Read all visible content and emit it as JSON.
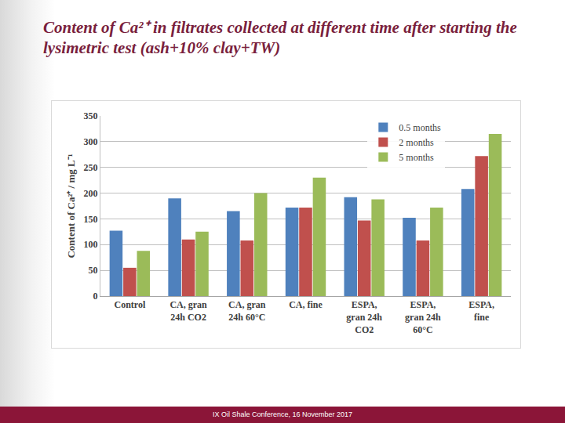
{
  "chart_data": {
    "type": "bar",
    "title": "Content of Ca²⁺ in filtrates collected at different time after starting the lysimetric test (ash+10% clay+TW)",
    "y_label": "Content of Ca²⁺ / mg L⁻¹",
    "categories": [
      "Control",
      "CA, gran 24h CO2",
      "CA, gran 24h 60°C",
      "CA, fine",
      "ESPA, gran 24h CO2",
      "ESPA, gran 24h 60°C",
      "ESPA, fine"
    ],
    "series": [
      {
        "name": "0.5 months",
        "color": "#4f81bd",
        "values": [
          127,
          190,
          165,
          172,
          192,
          152,
          208
        ]
      },
      {
        "name": "2 months",
        "color": "#c0504d",
        "values": [
          55,
          110,
          108,
          172,
          147,
          108,
          272
        ]
      },
      {
        "name": "5 months",
        "color": "#9bbb59",
        "values": [
          88,
          125,
          200,
          230,
          188,
          172,
          315
        ]
      }
    ],
    "ylim": [
      0,
      350
    ],
    "yticks": [
      0,
      50,
      100,
      150,
      200,
      250,
      300,
      350
    ],
    "grid": true,
    "legend": "upper right"
  },
  "footer": "IX Oil Shale Conference, 16 November 2017"
}
